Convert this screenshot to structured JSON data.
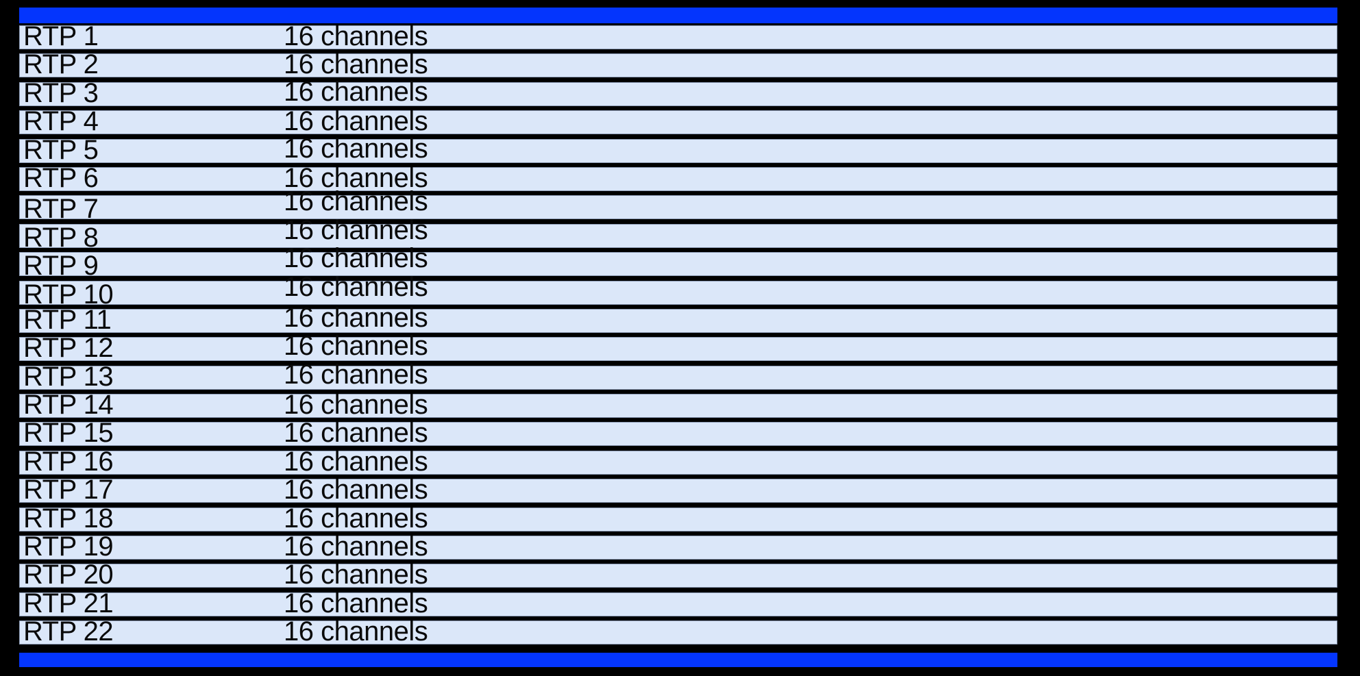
{
  "colors": {
    "background": "#000000",
    "bar_blue": "#0435FD",
    "row_fill": "#DBE7F9",
    "row_border": "#8C9BB5",
    "text": "#0A0A0A"
  },
  "stream_list": {
    "rows": [
      {
        "name": "RTP 1",
        "channels": "16 channels"
      },
      {
        "name": "RTP 2",
        "channels": "16 channels"
      },
      {
        "name": "RTP 3",
        "channels": "16 channels"
      },
      {
        "name": "RTP 4",
        "channels": "16 channels"
      },
      {
        "name": "RTP 5",
        "channels": "16 channels"
      },
      {
        "name": "RTP 6",
        "channels": "16 channels"
      },
      {
        "name": "RTP 7",
        "channels": "16 channels"
      },
      {
        "name": "RTP 8",
        "channels": "16 channels"
      },
      {
        "name": "RTP 9",
        "channels": "16 channels"
      },
      {
        "name": "RTP 10",
        "channels": "16 channels"
      },
      {
        "name": "RTP 11",
        "channels": "16 channels"
      },
      {
        "name": "RTP 12",
        "channels": "16 channels"
      },
      {
        "name": "RTP 13",
        "channels": "16 channels"
      },
      {
        "name": "RTP 14",
        "channels": "16 channels"
      },
      {
        "name": "RTP 15",
        "channels": "16 channels"
      },
      {
        "name": "RTP 16",
        "channels": "16 channels"
      },
      {
        "name": "RTP 17",
        "channels": "16 channels"
      },
      {
        "name": "RTP 18",
        "channels": "16 channels"
      },
      {
        "name": "RTP 19",
        "channels": "16 channels"
      },
      {
        "name": "RTP 20",
        "channels": "16 channels"
      },
      {
        "name": "RTP 21",
        "channels": "16 channels"
      },
      {
        "name": "RTP 22",
        "channels": "16 channels"
      }
    ]
  }
}
